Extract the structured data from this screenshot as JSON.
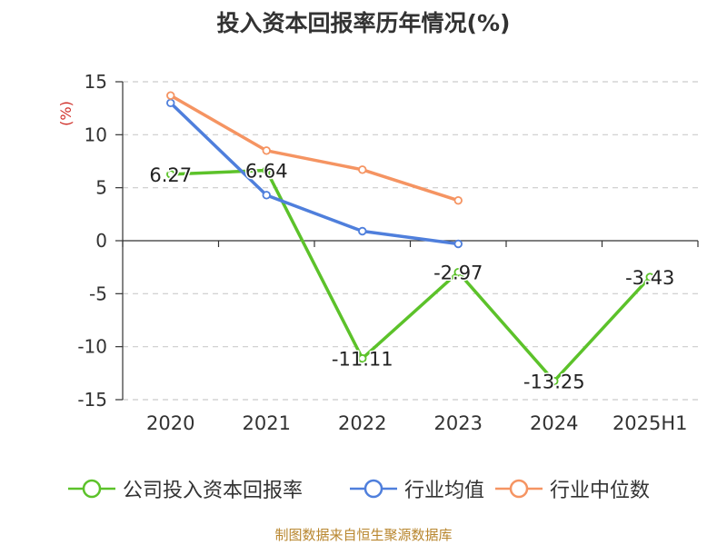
{
  "chart_data": {
    "type": "line",
    "title": "投入资本回报率历年情况(%)",
    "ylabel": "(%)",
    "categories": [
      "2020",
      "2021",
      "2022",
      "2023",
      "2024",
      "2025H1"
    ],
    "ylim": [
      -15,
      15
    ],
    "yticks": [
      15,
      10,
      5,
      0,
      -5,
      -10,
      -15
    ],
    "grid": true,
    "legend_position": "bottom",
    "series": [
      {
        "name": "公司投入资本回报率",
        "color": "#5cc22a",
        "values": [
          6.27,
          6.64,
          -11.11,
          -2.97,
          -13.25,
          -3.43
        ],
        "data_labels": [
          "6.27",
          "6.64",
          "-11.11",
          "-2.97",
          "-13.25",
          "-3.43"
        ]
      },
      {
        "name": "行业均值",
        "color": "#4f7fdc",
        "values": [
          13.0,
          4.3,
          0.9,
          -0.3,
          null,
          null
        ]
      },
      {
        "name": "行业中位数",
        "color": "#f59462",
        "values": [
          13.7,
          8.5,
          6.7,
          3.8,
          null,
          null
        ]
      }
    ]
  },
  "source_note": "制图数据来自恒生聚源数据库"
}
